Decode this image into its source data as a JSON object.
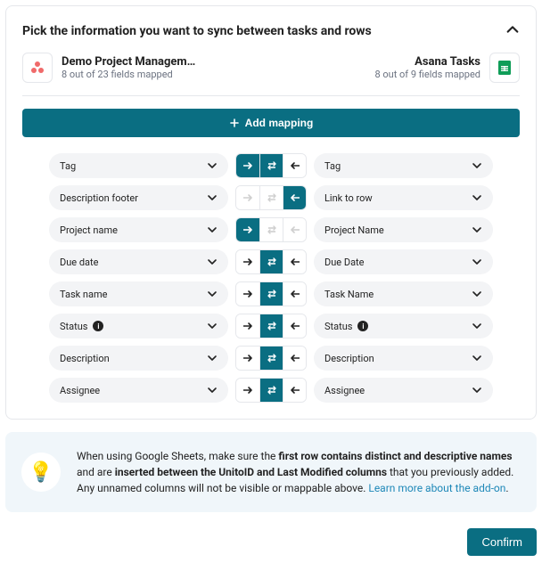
{
  "header": {
    "title": "Pick the information you want to sync between tasks and rows"
  },
  "accounts": {
    "left": {
      "title": "Demo Project Managem…",
      "sub": "8 out of 23 fields mapped",
      "icon": "asana"
    },
    "right": {
      "title": "Asana Tasks",
      "sub": "8 out of 9 fields mapped",
      "icon": "sheets"
    }
  },
  "addButton": {
    "label": "Add mapping"
  },
  "mappings": [
    {
      "left": "Tag",
      "right": "Tag",
      "dirs": [
        "active",
        "active",
        "plain"
      ],
      "leftInfo": false,
      "rightInfo": false
    },
    {
      "left": "Description footer",
      "right": "Link to row",
      "dirs": [
        "faded",
        "faded",
        "active"
      ],
      "leftInfo": false,
      "rightInfo": false
    },
    {
      "left": "Project name",
      "right": "Project Name",
      "dirs": [
        "active",
        "faded",
        "faded"
      ],
      "leftInfo": false,
      "rightInfo": false
    },
    {
      "left": "Due date",
      "right": "Due Date",
      "dirs": [
        "plain",
        "active",
        "plain"
      ],
      "leftInfo": false,
      "rightInfo": false
    },
    {
      "left": "Task name",
      "right": "Task Name",
      "dirs": [
        "plain",
        "active",
        "plain"
      ],
      "leftInfo": false,
      "rightInfo": false
    },
    {
      "left": "Status",
      "right": "Status",
      "dirs": [
        "plain",
        "active",
        "plain"
      ],
      "leftInfo": true,
      "rightInfo": true
    },
    {
      "left": "Description",
      "right": "Description",
      "dirs": [
        "plain",
        "active",
        "plain"
      ],
      "leftInfo": false,
      "rightInfo": false
    },
    {
      "left": "Assignee",
      "right": "Assignee",
      "dirs": [
        "plain",
        "active",
        "plain"
      ],
      "leftInfo": false,
      "rightInfo": false
    }
  ],
  "tip": {
    "prefix": "When using Google Sheets, make sure the ",
    "bold1": "first row contains distinct and descriptive names",
    "mid1": " and are ",
    "bold2": "inserted between the UnitoID and Last Modified columns",
    "mid2": " that you previously added. Any unnamed columns will not be visible or mappable above. ",
    "link": "Learn more about the add-on"
  },
  "footer": {
    "confirm": "Confirm"
  },
  "colors": {
    "brand": "#0a6e82"
  }
}
